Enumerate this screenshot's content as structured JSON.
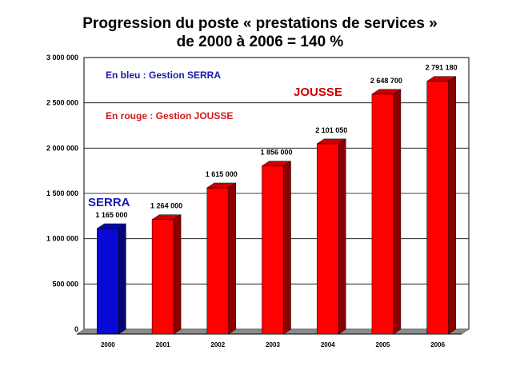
{
  "chart_data": {
    "type": "bar",
    "title_line1": "Progression du poste « prestations de services »",
    "title_line2": "de 2000 à 2006 = 140 %",
    "categories": [
      "2000",
      "2001",
      "2002",
      "2003",
      "2004",
      "2005",
      "2006"
    ],
    "values": [
      1165000,
      1264000,
      1615000,
      1856000,
      2101050,
      2648700,
      2791180
    ],
    "value_labels": [
      "1 165 000",
      "1 264 000",
      "1 615 000",
      "1 856 000",
      "2 101 050",
      "2 648 700",
      "2 791 180"
    ],
    "bar_colors": [
      "#0a0ad6",
      "#ff0000",
      "#ff0000",
      "#ff0000",
      "#ff0000",
      "#ff0000",
      "#ff0000"
    ],
    "ylim": [
      0,
      3000000
    ],
    "yticks": [
      0,
      500000,
      1000000,
      1500000,
      2000000,
      2500000,
      3000000
    ],
    "ytick_labels": [
      "0",
      "500 000",
      "1 000 000",
      "1 500 000",
      "2 000 000",
      "2 500 000",
      "3 000 000"
    ],
    "grid": true,
    "bar_style": "3d",
    "annotations": {
      "blue_note": "En bleu : Gestion SERRA",
      "red_note": "En rouge : Gestion JOUSSE",
      "serra_label": "SERRA",
      "jousse_label": "JOUSSE"
    },
    "colors": {
      "blue_bar": "#0a0ad6",
      "red_bar": "#ff0000",
      "floor": "#8a8a8a",
      "grid": "#000000"
    }
  }
}
